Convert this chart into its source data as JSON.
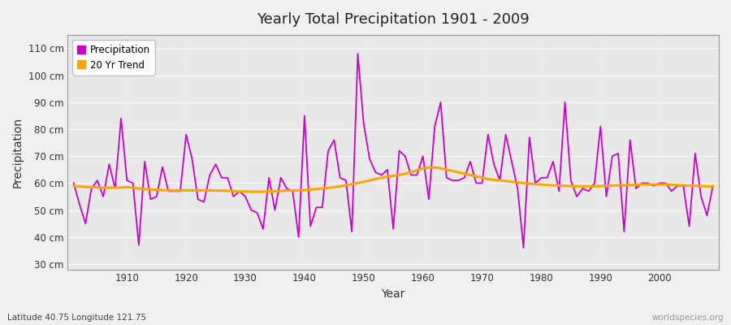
{
  "title": "Yearly Total Precipitation 1901 - 2009",
  "xlabel": "Year",
  "ylabel": "Precipitation",
  "subtitle": "Latitude 40.75 Longitude 121.75",
  "watermark": "worldspecies.org",
  "precip_color": "#CC00CC",
  "trend_color": "#FFA500",
  "fig_bg": "#F0F0F0",
  "plot_bg": "#E8E8E8",
  "ylim": [
    28,
    115
  ],
  "yticks": [
    30,
    40,
    50,
    60,
    70,
    80,
    90,
    100,
    110
  ],
  "xlim": [
    1900,
    2010
  ],
  "years": [
    1901,
    1902,
    1903,
    1904,
    1905,
    1906,
    1907,
    1908,
    1909,
    1910,
    1911,
    1912,
    1913,
    1914,
    1915,
    1916,
    1917,
    1918,
    1919,
    1920,
    1921,
    1922,
    1923,
    1924,
    1925,
    1926,
    1927,
    1928,
    1929,
    1930,
    1931,
    1932,
    1933,
    1934,
    1935,
    1936,
    1937,
    1938,
    1939,
    1940,
    1941,
    1942,
    1943,
    1944,
    1945,
    1946,
    1947,
    1948,
    1949,
    1950,
    1951,
    1952,
    1953,
    1954,
    1955,
    1956,
    1957,
    1958,
    1959,
    1960,
    1961,
    1962,
    1963,
    1964,
    1965,
    1966,
    1967,
    1968,
    1969,
    1970,
    1971,
    1972,
    1973,
    1974,
    1975,
    1976,
    1977,
    1978,
    1979,
    1980,
    1981,
    1982,
    1983,
    1984,
    1985,
    1986,
    1987,
    1988,
    1989,
    1990,
    1991,
    1992,
    1993,
    1994,
    1995,
    1996,
    1997,
    1998,
    1999,
    2000,
    2001,
    2002,
    2003,
    2004,
    2005,
    2006,
    2007,
    2008,
    2009
  ],
  "precip": [
    60,
    52,
    45,
    58,
    61,
    55,
    67,
    58,
    84,
    61,
    60,
    37,
    68,
    54,
    55,
    66,
    57,
    57,
    57,
    78,
    69,
    54,
    53,
    63,
    67,
    62,
    62,
    55,
    57,
    55,
    50,
    49,
    43,
    62,
    50,
    62,
    58,
    57,
    40,
    85,
    44,
    51,
    51,
    72,
    76,
    62,
    61,
    42,
    108,
    82,
    69,
    64,
    63,
    65,
    43,
    72,
    70,
    63,
    63,
    70,
    54,
    81,
    90,
    62,
    61,
    61,
    62,
    68,
    60,
    60,
    78,
    67,
    61,
    78,
    68,
    58,
    36,
    77,
    60,
    62,
    62,
    68,
    57,
    90,
    61,
    55,
    58,
    57,
    60,
    81,
    55,
    70,
    71,
    42,
    76,
    58,
    60,
    60,
    59,
    60,
    60,
    57,
    59,
    59,
    44,
    71,
    55,
    48,
    59
  ],
  "trend": [
    59.0,
    58.8,
    58.6,
    58.5,
    58.4,
    58.3,
    58.3,
    58.3,
    58.4,
    58.5,
    58.3,
    58.0,
    57.8,
    57.6,
    57.5,
    57.4,
    57.3,
    57.3,
    57.3,
    57.3,
    57.3,
    57.3,
    57.3,
    57.3,
    57.2,
    57.2,
    57.1,
    57.0,
    56.9,
    56.9,
    56.8,
    56.8,
    56.8,
    56.9,
    57.0,
    57.1,
    57.2,
    57.3,
    57.3,
    57.4,
    57.6,
    57.8,
    58.0,
    58.2,
    58.5,
    58.8,
    59.2,
    59.6,
    60.0,
    60.5,
    61.0,
    61.5,
    62.0,
    62.4,
    62.7,
    63.0,
    63.5,
    64.0,
    64.8,
    65.5,
    65.8,
    65.8,
    65.5,
    65.0,
    64.5,
    64.0,
    63.5,
    63.0,
    62.5,
    62.0,
    61.5,
    61.2,
    61.0,
    60.8,
    60.5,
    60.2,
    60.0,
    59.8,
    59.6,
    59.5,
    59.3,
    59.2,
    59.1,
    59.0,
    58.9,
    58.8,
    58.8,
    58.8,
    58.8,
    58.9,
    59.0,
    59.1,
    59.2,
    59.2,
    59.3,
    59.4,
    59.5,
    59.5,
    59.5,
    59.5,
    59.5,
    59.4,
    59.3,
    59.2,
    59.1,
    59.0,
    58.9,
    58.8,
    58.7
  ]
}
